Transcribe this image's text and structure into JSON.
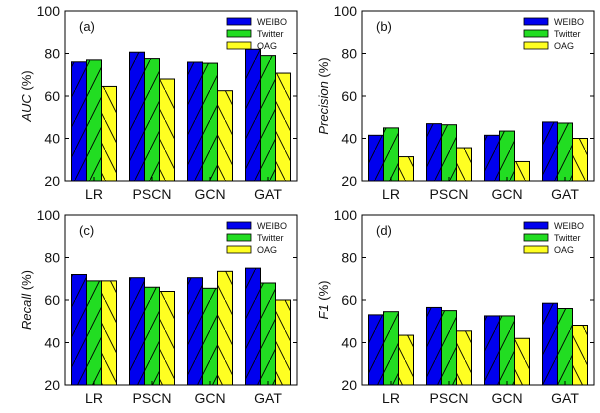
{
  "chart_data": [
    {
      "type": "bar",
      "panel_label": "(a)",
      "metric": "AUC",
      "unit": "(%)",
      "categories": [
        "LR",
        "PSCN",
        "GCN",
        "GAT"
      ],
      "ylim": [
        20,
        100
      ],
      "yticks": [
        "20",
        "40",
        "60",
        "80",
        "100"
      ],
      "legend_position": "top-right",
      "series": [
        {
          "name": "WEIBO",
          "color": "#0000ee",
          "values": [
            76.1,
            80.6,
            76.0,
            82.0
          ]
        },
        {
          "name": "Twitter",
          "color": "#22dd22",
          "values": [
            77.0,
            77.6,
            75.5,
            79.0
          ]
        },
        {
          "name": "OAG",
          "color": "#ffff22",
          "values": [
            64.5,
            68.0,
            62.5,
            70.8
          ]
        }
      ]
    },
    {
      "type": "bar",
      "panel_label": "(b)",
      "metric": "Precision",
      "unit": "(%)",
      "categories": [
        "LR",
        "PSCN",
        "GCN",
        "GAT"
      ],
      "ylim": [
        20,
        100
      ],
      "yticks": [
        "20",
        "40",
        "60",
        "80",
        "100"
      ],
      "legend_position": "top-right",
      "series": [
        {
          "name": "WEIBO",
          "color": "#0000ee",
          "values": [
            41.5,
            47.0,
            41.5,
            47.8
          ]
        },
        {
          "name": "Twitter",
          "color": "#22dd22",
          "values": [
            45.0,
            46.5,
            43.5,
            47.3
          ]
        },
        {
          "name": "OAG",
          "color": "#ffff22",
          "values": [
            31.5,
            35.5,
            29.2,
            40.0
          ]
        }
      ]
    },
    {
      "type": "bar",
      "panel_label": "(c)",
      "metric": "Recall",
      "unit": "(%)",
      "categories": [
        "LR",
        "PSCN",
        "GCN",
        "GAT"
      ],
      "ylim": [
        20,
        100
      ],
      "yticks": [
        "20",
        "40",
        "60",
        "80",
        "100"
      ],
      "legend_position": "top-right",
      "series": [
        {
          "name": "WEIBO",
          "color": "#0000ee",
          "values": [
            72.0,
            70.5,
            70.5,
            75.0
          ]
        },
        {
          "name": "Twitter",
          "color": "#22dd22",
          "values": [
            69.0,
            66.0,
            65.5,
            68.0
          ]
        },
        {
          "name": "OAG",
          "color": "#ffff22",
          "values": [
            69.0,
            64.0,
            73.5,
            60.0
          ]
        }
      ]
    },
    {
      "type": "bar",
      "panel_label": "(d)",
      "metric": "F1",
      "unit": "(%)",
      "categories": [
        "LR",
        "PSCN",
        "GCN",
        "GAT"
      ],
      "ylim": [
        20,
        100
      ],
      "yticks": [
        "20",
        "40",
        "60",
        "80",
        "100"
      ],
      "legend_position": "top-right",
      "series": [
        {
          "name": "WEIBO",
          "color": "#0000ee",
          "values": [
            53.0,
            56.5,
            52.5,
            58.5
          ]
        },
        {
          "name": "Twitter",
          "color": "#22dd22",
          "values": [
            54.5,
            55.0,
            52.5,
            56.0
          ]
        },
        {
          "name": "OAG",
          "color": "#ffff22",
          "values": [
            43.5,
            45.5,
            42.0,
            48.0
          ]
        }
      ]
    }
  ]
}
